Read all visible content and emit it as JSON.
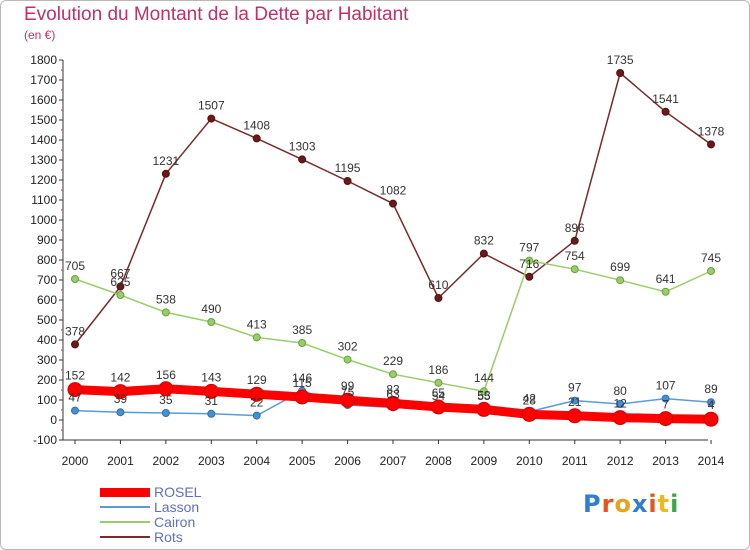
{
  "header": {
    "title": "Evolution du Montant de la Dette par Habitant",
    "subtitle": "(en €)"
  },
  "logo": {
    "text": "Proxiti",
    "letter_colors": [
      "#2f7fd0",
      "#e8541c",
      "#e8a31c",
      "#2f7fd0",
      "#e8541c",
      "#f0b81c",
      "#3aa84a"
    ]
  },
  "chart_data": {
    "type": "line",
    "title": "Evolution du Montant de la Dette par Habitant",
    "ylabel": "(en €)",
    "xlabel": "",
    "x": [
      "2000",
      "2001",
      "2002",
      "2003",
      "2004",
      "2005",
      "2006",
      "2007",
      "2008",
      "2009",
      "2010",
      "2011",
      "2012",
      "2013",
      "2014"
    ],
    "ylim": [
      -100,
      1800
    ],
    "yticks": [
      -100,
      0,
      100,
      200,
      300,
      400,
      500,
      600,
      700,
      800,
      900,
      1000,
      1100,
      1200,
      1300,
      1400,
      1500,
      1600,
      1700,
      1800
    ],
    "grid": false,
    "legend": "bottom-left",
    "series": [
      {
        "name": "ROSEL",
        "color": "#ff0000",
        "values": [
          152,
          142,
          156,
          143,
          129,
          115,
          99,
          83,
          65,
          53,
          28,
          21,
          12,
          7,
          4
        ]
      },
      {
        "name": "Lasson",
        "color": "#5b9bd5",
        "values": [
          47,
          39,
          35,
          31,
          22,
          146,
          75,
          63,
          54,
          55,
          42,
          97,
          80,
          107,
          89
        ]
      },
      {
        "name": "Cairon",
        "color": "#9acd6a",
        "values": [
          705,
          625,
          538,
          490,
          413,
          385,
          302,
          229,
          186,
          144,
          797,
          754,
          699,
          641,
          745
        ]
      },
      {
        "name": "Rots",
        "color": "#7a2a2a",
        "values": [
          378,
          667,
          1231,
          1507,
          1408,
          1303,
          1195,
          1082,
          610,
          832,
          716,
          896,
          1735,
          1541,
          1378
        ]
      }
    ]
  }
}
